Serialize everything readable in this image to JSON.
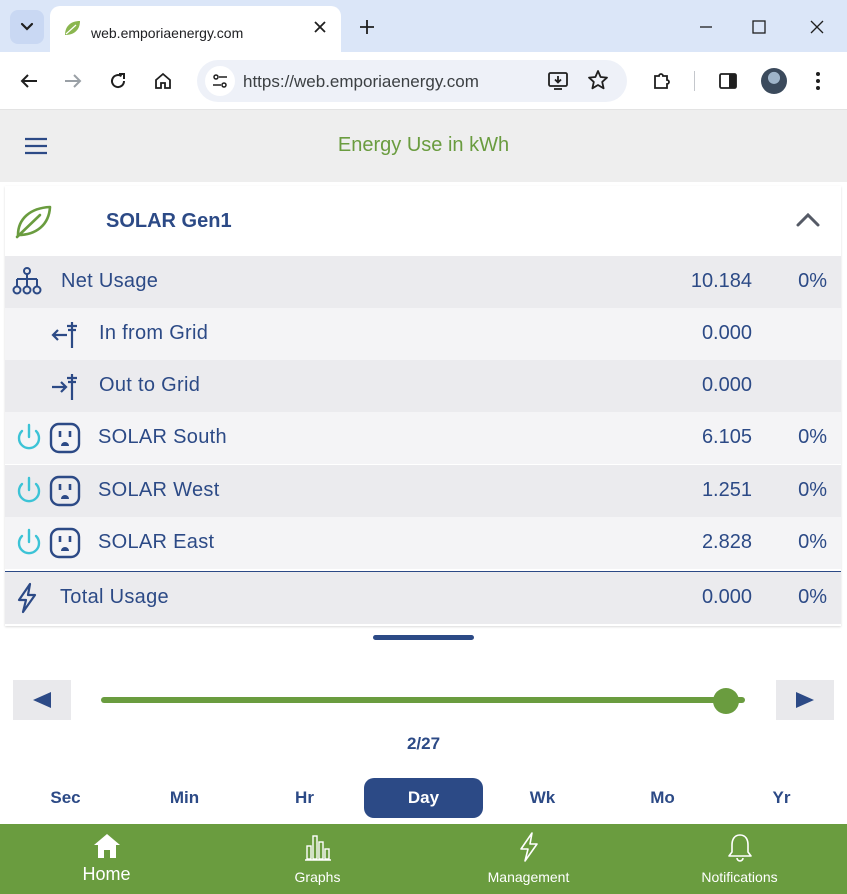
{
  "browser": {
    "tab_title": "web.emporiaenergy.com",
    "url": "https://web.emporiaenergy.com"
  },
  "app": {
    "title": "Energy Use in kWh"
  },
  "group": {
    "name": "SOLAR Gen1"
  },
  "rows": [
    {
      "label": "Net Usage",
      "value": "10.184",
      "percent": "0%"
    },
    {
      "label": "In from Grid",
      "value": "0.000",
      "percent": ""
    },
    {
      "label": "Out to Grid",
      "value": "0.000",
      "percent": ""
    },
    {
      "label": "SOLAR South",
      "value": "6.105",
      "percent": "0%"
    },
    {
      "label": "SOLAR West",
      "value": "1.251",
      "percent": "0%"
    },
    {
      "label": "SOLAR East",
      "value": "2.828",
      "percent": "0%"
    }
  ],
  "total": {
    "label": "Total Usage",
    "value": "0.000",
    "percent": "0%"
  },
  "timeline": {
    "date": "2/27",
    "slider_position_fraction": 0.97
  },
  "ranges": [
    "Sec",
    "Min",
    "Hr",
    "Day",
    "Wk",
    "Mo",
    "Yr"
  ],
  "active_range": "Day",
  "bottom_nav": [
    {
      "label": "Home",
      "icon": "home-icon"
    },
    {
      "label": "Graphs",
      "icon": "bar-chart-icon"
    },
    {
      "label": "Management",
      "icon": "lightning-icon"
    },
    {
      "label": "Notifications",
      "icon": "bell-icon"
    }
  ],
  "colors": {
    "brand_green": "#6a9c3f",
    "navy": "#2c4a86",
    "power_cyan": "#3cc3d6"
  }
}
